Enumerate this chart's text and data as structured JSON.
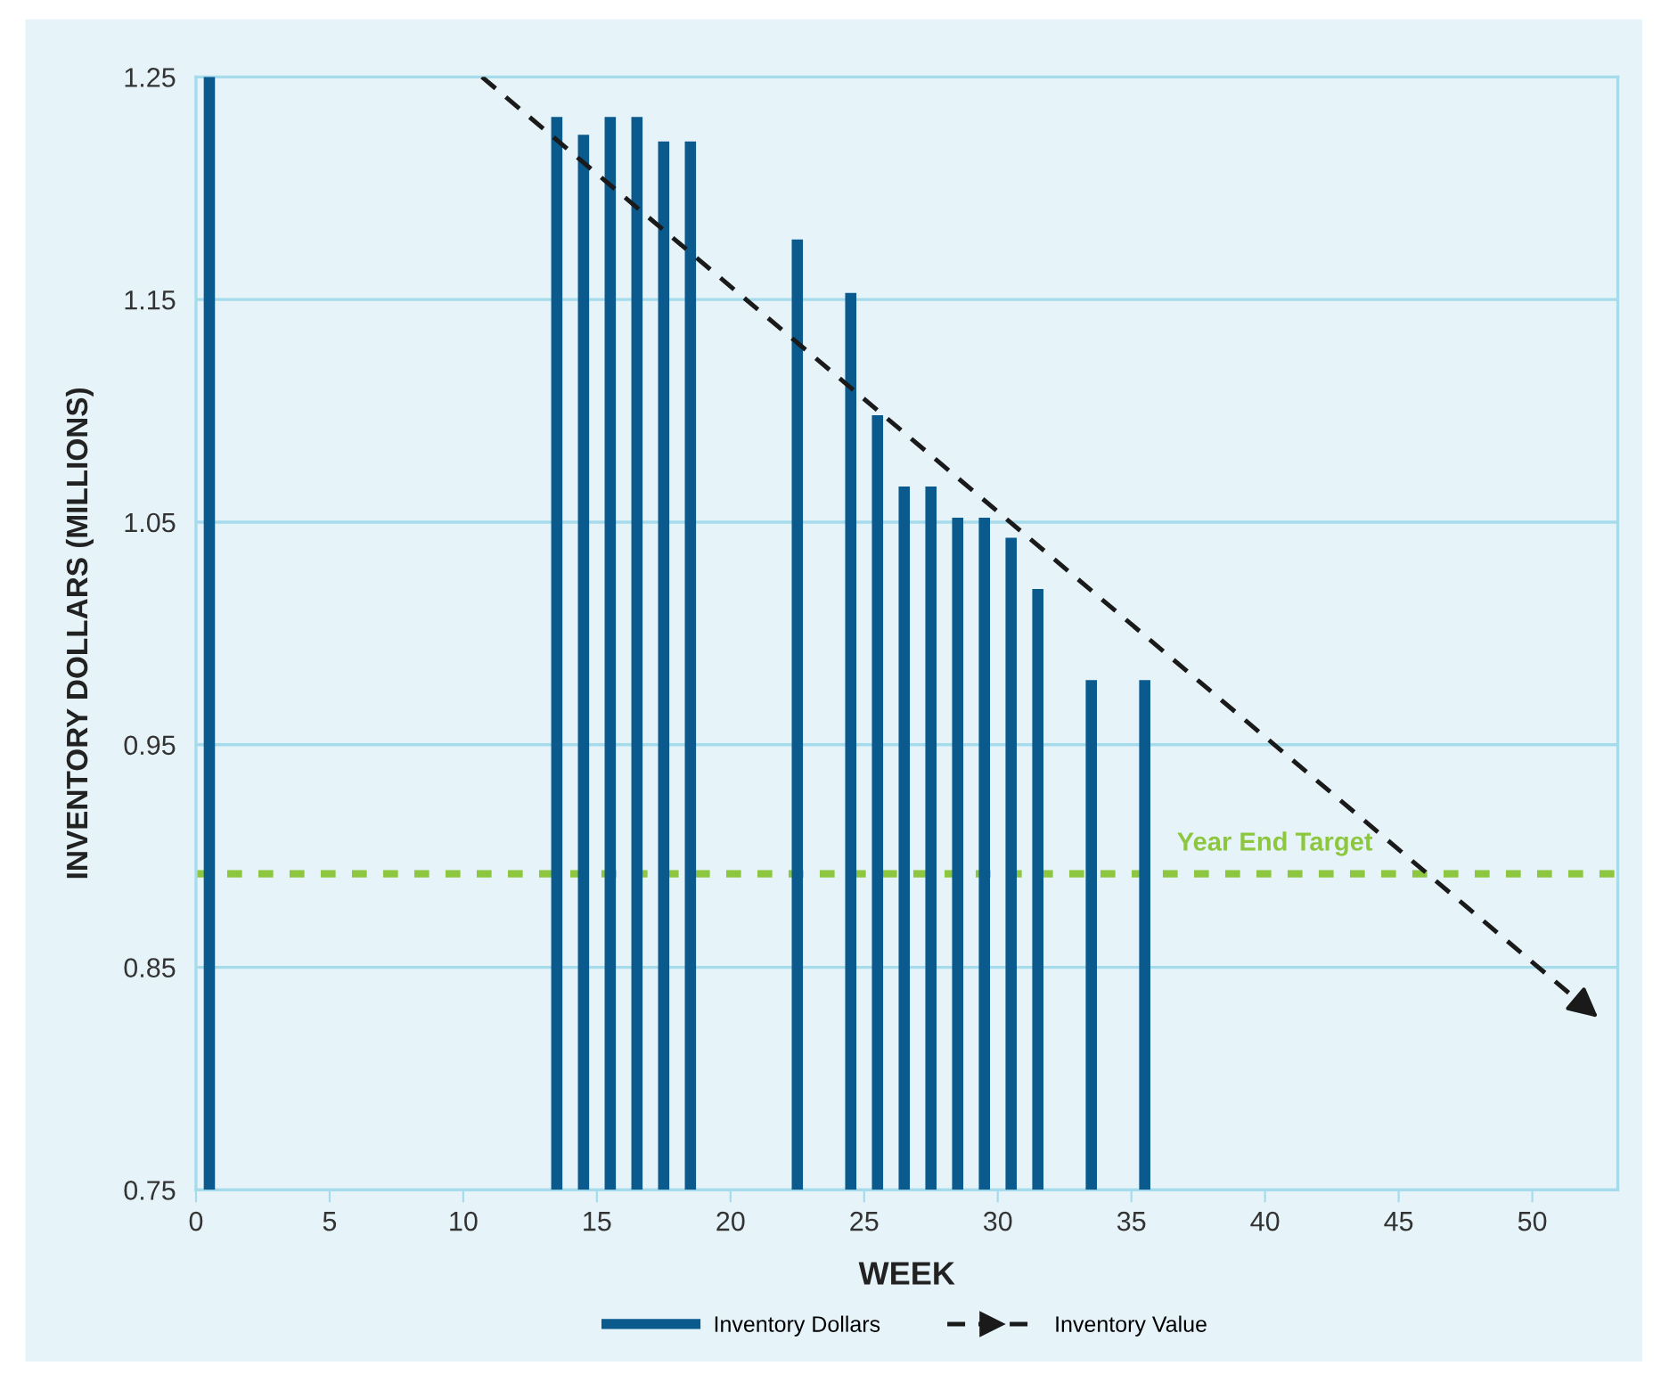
{
  "chart_data": {
    "type": "bar",
    "xlabel": "WEEK",
    "ylabel": "INVENTORY DOLLARS (MILLIONS)",
    "x": [
      0.5,
      13.5,
      14.5,
      15.5,
      16.5,
      17.5,
      18.5,
      22.5,
      24.5,
      25.5,
      26.5,
      27.5,
      28.5,
      29.5,
      30.5,
      31.5,
      33.5,
      35.5
    ],
    "series": [
      {
        "name": "Inventory Dollars",
        "color": "#0b5a8e",
        "values": [
          1.25,
          1.232,
          1.224,
          1.232,
          1.232,
          1.221,
          1.221,
          1.177,
          1.153,
          1.098,
          1.066,
          1.066,
          1.052,
          1.052,
          1.043,
          1.02,
          0.979,
          0.979
        ]
      },
      {
        "name": "Inventory Value",
        "type": "line",
        "color": "#1a1a1a",
        "line_style": "dashed",
        "x": [
          10.7,
          52.6
        ],
        "values": [
          1.25,
          0.826
        ]
      }
    ],
    "xlim": [
      0,
      53.2
    ],
    "xticks": [
      0,
      5,
      10,
      15,
      20,
      25,
      30,
      35,
      40,
      45,
      50
    ],
    "ylim": [
      0.75,
      1.25
    ],
    "yticks": [
      0.75,
      0.85,
      0.95,
      1.05,
      1.15,
      1.25
    ],
    "ref_lines": [
      {
        "axis": "y",
        "value": 0.892,
        "label": "Year End Target",
        "color": "#8dc63f",
        "line_style": "dotted"
      }
    ],
    "grid": "y",
    "legend": "bottom"
  }
}
